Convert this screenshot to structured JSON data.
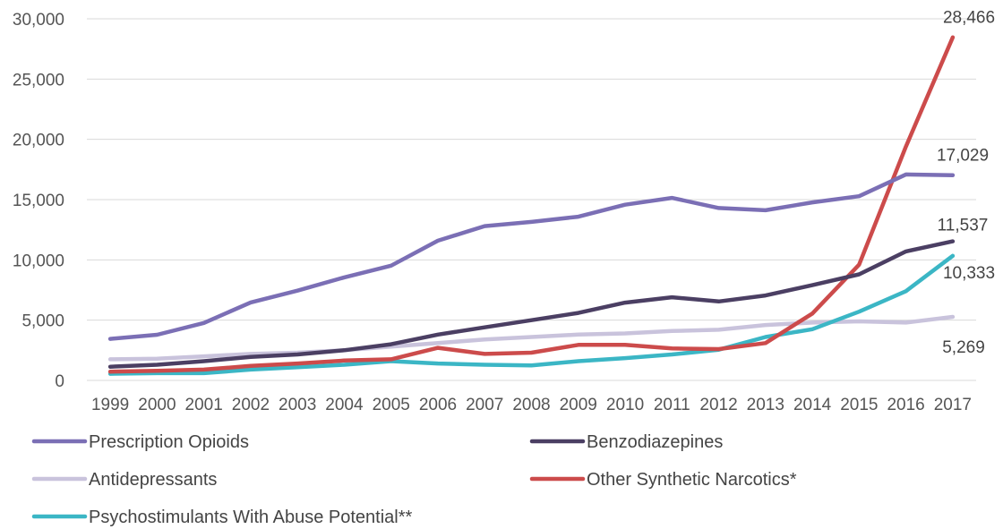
{
  "chart_data": {
    "type": "line",
    "categories": [
      "1999",
      "2000",
      "2001",
      "2002",
      "2003",
      "2004",
      "2005",
      "2006",
      "2007",
      "2008",
      "2009",
      "2010",
      "2011",
      "2012",
      "2013",
      "2014",
      "2015",
      "2016",
      "2017"
    ],
    "y_ticks": [
      "0",
      "5,000",
      "10,000",
      "15,000",
      "20,000",
      "25,000",
      "30,000"
    ],
    "ylim": [
      0,
      30000
    ],
    "grid": true,
    "legend_position": "bottom",
    "series": [
      {
        "name": "Prescription Opioids",
        "color": "#7b6fb5",
        "values": [
          3442,
          3785,
          4770,
          6470,
          7450,
          8550,
          9520,
          11590,
          12800,
          13150,
          13580,
          14580,
          15140,
          14300,
          14120,
          14770,
          15280,
          17090,
          17029
        ],
        "end_label": "17,029"
      },
      {
        "name": "Benzodiazepines",
        "color": "#4b3f63",
        "values": [
          1135,
          1300,
          1600,
          1950,
          2150,
          2500,
          3000,
          3800,
          4400,
          5000,
          5600,
          6450,
          6900,
          6550,
          7050,
          7900,
          8800,
          10700,
          11537
        ],
        "end_label": "11,537"
      },
      {
        "name": "Antidepressants",
        "color": "#c9c3dc",
        "values": [
          1750,
          1800,
          2000,
          2200,
          2300,
          2500,
          2800,
          3100,
          3400,
          3600,
          3800,
          3900,
          4100,
          4200,
          4600,
          4800,
          4900,
          4800,
          5269
        ],
        "end_label": "5,269"
      },
      {
        "name": "Other Synthetic Narcotics*",
        "color": "#cc4b4b",
        "values": [
          730,
          800,
          900,
          1200,
          1400,
          1650,
          1750,
          2700,
          2200,
          2300,
          2950,
          2950,
          2650,
          2600,
          3100,
          5550,
          9600,
          19400,
          28466
        ],
        "end_label": "28,466"
      },
      {
        "name": "Psychostimulants With Abuse Potential**",
        "color": "#3bb6c5",
        "values": [
          550,
          600,
          600,
          900,
          1100,
          1300,
          1600,
          1400,
          1300,
          1250,
          1600,
          1850,
          2150,
          2550,
          3600,
          4250,
          5700,
          7400,
          10333
        ],
        "end_label": "10,333"
      }
    ]
  }
}
